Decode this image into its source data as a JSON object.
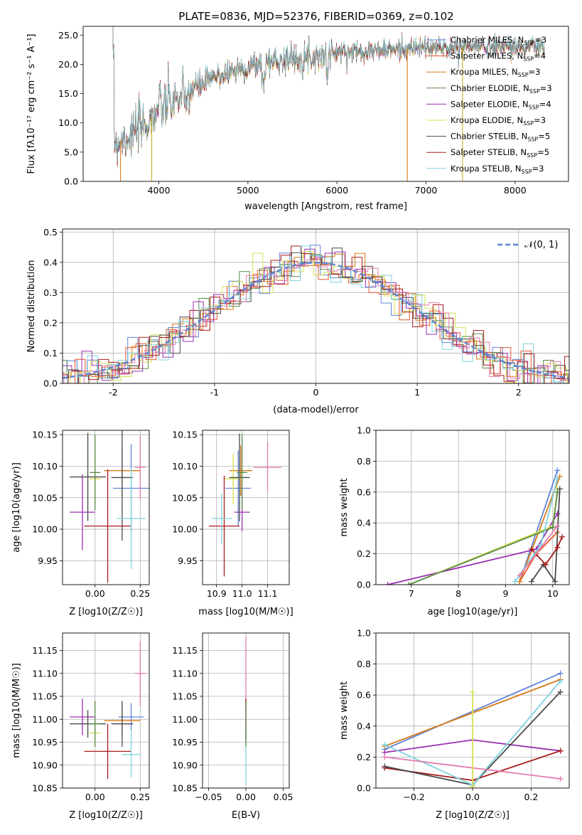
{
  "figure_title": "PLATE=0836, MJD=52376, FIBERID=0369, z=0.102",
  "colors": {
    "Chabrier MILES": "#5f84d6",
    "Salpeter MILES": "#e3572b",
    "Kroupa MILES": "#d97a16",
    "Chabrier ELODIE": "#5a8a4a",
    "Salpeter ELODIE": "#9a2fb0",
    "Kroupa ELODIE": "#d6e052",
    "Chabrier STELIB": "#4a4a4a",
    "Salpeter STELIB": "#a81a1a",
    "Kroupa STELIB": "#7fd3dc",
    "pink": "#e27bb0",
    "normal_curve": "#5f84d6"
  },
  "chart_data": [
    {
      "type": "line",
      "title": "PLATE=0836, MJD=52376, FIBERID=0369, z=0.102",
      "xlabel": "wavelength [Angstrom, rest frame]",
      "ylabel": "Flux [fλ10⁻¹⁷ erg cm⁻² s⁻¹ A⁻¹]",
      "xlim": [
        3150,
        8600
      ],
      "ylim": [
        0,
        26.5
      ],
      "xticks": [
        4000,
        5000,
        6000,
        7000,
        8000
      ],
      "yticks": [
        0,
        5,
        10,
        15,
        20,
        25
      ],
      "legend_position": "upper-right",
      "series": [
        {
          "name": "Chabrier MILES, N_SSP=3",
          "key": "Chabrier MILES"
        },
        {
          "name": "Salpeter MILES, N_SSP=4",
          "key": "Salpeter MILES"
        },
        {
          "name": "Kroupa MILES, N_SSP=3",
          "key": "Kroupa MILES"
        },
        {
          "name": "Chabrier ELODIE, N_SSP=3",
          "key": "Chabrier ELODIE"
        },
        {
          "name": "Salpeter ELODIE, N_SSP=4",
          "key": "Salpeter ELODIE"
        },
        {
          "name": "Kroupa ELODIE, N_SSP=3",
          "key": "Kroupa ELODIE"
        },
        {
          "name": "Chabrier STELIB, N_SSP=5",
          "key": "Chabrier STELIB"
        },
        {
          "name": "Salpeter STELIB, N_SSP=5",
          "key": "Salpeter STELIB"
        },
        {
          "name": "Kroupa STELIB, N_SSP=3",
          "key": "Kroupa STELIB"
        }
      ],
      "continuum": [
        [
          3500,
          6.5
        ],
        [
          3700,
          8
        ],
        [
          3900,
          10.5
        ],
        [
          4000,
          12.5
        ],
        [
          4200,
          14
        ],
        [
          4400,
          16
        ],
        [
          4600,
          17.5
        ],
        [
          4800,
          18.8
        ],
        [
          5000,
          19.5
        ],
        [
          5200,
          20.5
        ],
        [
          5500,
          21
        ],
        [
          5800,
          21.5
        ],
        [
          6000,
          22
        ],
        [
          6300,
          22.3
        ],
        [
          6600,
          22.5
        ],
        [
          6900,
          22.8
        ],
        [
          7200,
          22.8
        ],
        [
          7500,
          23
        ],
        [
          7800,
          23.2
        ],
        [
          8100,
          23
        ],
        [
          8300,
          23
        ]
      ],
      "dropouts": [
        [
          3920,
          0
        ],
        [
          6790,
          0
        ],
        [
          7410,
          0
        ],
        [
          3570,
          0
        ]
      ]
    },
    {
      "type": "histogram",
      "xlabel": "(data-model)/error",
      "ylabel": "Normed distribution",
      "xlim": [
        -2.5,
        2.5
      ],
      "ylim": [
        0,
        0.51
      ],
      "xticks": [
        -2,
        -1,
        0,
        1,
        2
      ],
      "yticks": [
        0.0,
        0.1,
        0.2,
        0.3,
        0.4,
        0.5
      ],
      "legend": "𝒩(0, 1)",
      "bin_width": 0.1,
      "reference_curve": "normal(0,1)"
    },
    {
      "type": "scatter",
      "xlabel": "Z [log10(Z/Z☉)]",
      "ylabel": "age [log10(age/yr)]",
      "xlim": [
        -0.18,
        0.3
      ],
      "ylim": [
        9.912,
        10.157
      ],
      "xticks": [
        0.0,
        0.25
      ],
      "xticklabels": [
        "0.00",
        "0.25"
      ],
      "yticks": [
        9.95,
        10.0,
        10.05,
        10.1,
        10.15
      ],
      "yticklabels": [
        "9.95",
        "10.00",
        "10.05",
        "10.10",
        "10.15"
      ],
      "points": [
        {
          "key": "Chabrier MILES",
          "x": 0.2,
          "xerr": 0.1,
          "y": 10.065,
          "yerr": 0.07
        },
        {
          "key": "Kroupa MILES",
          "x": 0.15,
          "xerr": 0.1,
          "y": 10.093,
          "yerr": 0.04
        },
        {
          "key": "Salpeter ELODIE",
          "x": -0.07,
          "xerr": 0.07,
          "y": 10.027,
          "yerr": 0.06
        },
        {
          "key": "Kroupa ELODIE",
          "x": 0.0,
          "xerr": 0.03,
          "y": 10.08,
          "yerr": 0.04
        },
        {
          "key": "Chabrier STELIB",
          "x": -0.04,
          "xerr": 0.1,
          "y": 10.083,
          "yerr": 0.07
        },
        {
          "key": "Chabrier STELIB",
          "x": 0.15,
          "xerr": 0.06,
          "y": 10.082,
          "yerr": 0.1
        },
        {
          "key": "Salpeter STELIB",
          "x": 0.07,
          "xerr": 0.13,
          "y": 10.005,
          "yerr": 0.09
        },
        {
          "key": "Kroupa STELIB",
          "x": 0.2,
          "xerr": 0.08,
          "y": 10.017,
          "yerr": 0.08
        },
        {
          "key": "pink",
          "x": 0.25,
          "xerr": 0.03,
          "y": 10.098,
          "yerr": 0.05
        },
        {
          "key": "Chabrier ELODIE",
          "x": 0.0,
          "xerr": 0.03,
          "y": 10.09,
          "yerr": 0.06
        }
      ]
    },
    {
      "type": "scatter",
      "xlabel": "mass [log10(M/M☉)]",
      "ylabel": "",
      "xlim": [
        10.845,
        11.185
      ],
      "ylim": [
        9.912,
        10.157
      ],
      "xticks": [
        10.9,
        11.0,
        11.1
      ],
      "xticklabels": [
        "10.9",
        "11.0",
        "11.1"
      ],
      "yticks": [
        9.95,
        10.0,
        10.05,
        10.1,
        10.15
      ],
      "yticklabels": [
        "9.95",
        "10.00",
        "10.05",
        "10.10",
        "10.15"
      ],
      "points": [
        {
          "key": "Chabrier MILES",
          "x": 10.985,
          "xerr": 0.05,
          "y": 10.065,
          "yerr": 0.06
        },
        {
          "key": "Kroupa MILES",
          "x": 10.995,
          "xerr": 0.045,
          "y": 10.093,
          "yerr": 0.04
        },
        {
          "key": "Salpeter ELODIE",
          "x": 11.0,
          "xerr": 0.03,
          "y": 10.027,
          "yerr": 0.03
        },
        {
          "key": "Kroupa ELODIE",
          "x": 10.965,
          "xerr": 0.035,
          "y": 10.08,
          "yerr": 0.04
        },
        {
          "key": "Chabrier STELIB",
          "x": 10.99,
          "xerr": 0.04,
          "y": 10.082,
          "yerr": 0.07
        },
        {
          "key": "Salpeter STELIB",
          "x": 10.93,
          "xerr": 0.06,
          "y": 10.005,
          "yerr": 0.08
        },
        {
          "key": "Kroupa STELIB",
          "x": 10.92,
          "xerr": 0.04,
          "y": 10.017,
          "yerr": 0.04
        },
        {
          "key": "pink",
          "x": 11.1,
          "xerr": 0.055,
          "y": 10.098,
          "yerr": 0.04
        },
        {
          "key": "Chabrier ELODIE",
          "x": 11.0,
          "xerr": 0.02,
          "y": 10.09,
          "yerr": 0.06
        }
      ]
    },
    {
      "type": "line",
      "xlabel": "age [log10(age/yr)]",
      "ylabel": "mass weight",
      "xlim": [
        6.25,
        10.35
      ],
      "ylim": [
        0,
        1.0
      ],
      "xticks": [
        7,
        8,
        9,
        10
      ],
      "yticks": [
        0.0,
        0.2,
        0.4,
        0.6,
        0.8,
        1.0
      ],
      "series": [
        {
          "key": "Chabrier MILES",
          "x": [
            9.3,
            10.1
          ],
          "y": [
            0.02,
            0.74
          ]
        },
        {
          "key": "Salpeter MILES",
          "x": [
            9.3,
            9.65,
            10.1
          ],
          "y": [
            0.02,
            0.2,
            0.34
          ]
        },
        {
          "key": "Kroupa MILES",
          "x": [
            9.3,
            10.15
          ],
          "y": [
            0.02,
            0.7
          ]
        },
        {
          "key": "Salpeter ELODIE",
          "x": [
            6.5,
            9.65,
            10.1
          ],
          "y": [
            0.0,
            0.23,
            0.46
          ]
        },
        {
          "key": "Kroupa ELODIE",
          "x": [
            6.95,
            10.0,
            10.1
          ],
          "y": [
            0.0,
            0.38,
            0.62
          ]
        },
        {
          "key": "Chabrier ELODIE",
          "x": [
            6.95,
            10.0,
            10.1
          ],
          "y": [
            0.0,
            0.37,
            0.6
          ]
        },
        {
          "key": "Chabrier STELIB",
          "x": [
            9.55,
            9.8,
            10.05,
            10.15
          ],
          "y": [
            0.02,
            0.13,
            0.02,
            0.62
          ]
        },
        {
          "key": "Salpeter STELIB",
          "x": [
            9.55,
            9.85,
            10.1,
            10.2
          ],
          "y": [
            0.23,
            0.13,
            0.24,
            0.31
          ]
        },
        {
          "key": "Kroupa STELIB",
          "x": [
            9.2,
            9.75,
            10.1
          ],
          "y": [
            0.02,
            0.26,
            0.69
          ]
        },
        {
          "key": "pink",
          "x": [
            9.3,
            10.1
          ],
          "y": [
            0.06,
            0.38
          ]
        }
      ]
    },
    {
      "type": "scatter",
      "xlabel": "Z [log10(Z/Z☉)]",
      "ylabel": "mass [log10(M/M☉)]",
      "xlim": [
        -0.18,
        0.3
      ],
      "ylim": [
        10.85,
        11.188
      ],
      "xticks": [
        0.0,
        0.25
      ],
      "xticklabels": [
        "0.00",
        "0.25"
      ],
      "yticks": [
        10.85,
        10.9,
        10.95,
        11.0,
        11.05,
        11.1,
        11.15
      ],
      "yticklabels": [
        "10.85",
        "10.90",
        "10.95",
        "11.00",
        "11.05",
        "11.10",
        "11.15"
      ],
      "points": [
        {
          "key": "Chabrier MILES",
          "x": 0.2,
          "xerr": 0.07,
          "y": 11.005,
          "yerr": 0.03
        },
        {
          "key": "Kroupa MILES",
          "x": 0.15,
          "xerr": 0.1,
          "y": 10.997,
          "yerr": 0.03
        },
        {
          "key": "Salpeter ELODIE",
          "x": -0.07,
          "xerr": 0.07,
          "y": 11.005,
          "yerr": 0.04
        },
        {
          "key": "Kroupa ELODIE",
          "x": 0.0,
          "xerr": 0.03,
          "y": 10.97,
          "yerr": 0.03
        },
        {
          "key": "Chabrier STELIB",
          "x": -0.04,
          "xerr": 0.1,
          "y": 10.99,
          "yerr": 0.03
        },
        {
          "key": "Chabrier STELIB",
          "x": 0.15,
          "xerr": 0.06,
          "y": 10.99,
          "yerr": 0.05
        },
        {
          "key": "Salpeter STELIB",
          "x": 0.07,
          "xerr": 0.13,
          "y": 10.93,
          "yerr": 0.06
        },
        {
          "key": "Kroupa STELIB",
          "x": 0.2,
          "xerr": 0.05,
          "y": 10.923,
          "yerr": 0.05
        },
        {
          "key": "pink",
          "x": 0.25,
          "xerr": 0.03,
          "y": 11.1,
          "yerr": 0.07
        },
        {
          "key": "Chabrier ELODIE",
          "x": 0.0,
          "xerr": 0.03,
          "y": 10.99,
          "yerr": 0.05
        }
      ]
    },
    {
      "type": "scatter",
      "xlabel": "E(B-V)",
      "ylabel": "",
      "xlim": [
        -0.058,
        0.058
      ],
      "ylim": [
        10.85,
        11.188
      ],
      "xticks": [
        -0.05,
        0.0,
        0.05
      ],
      "xticklabels": [
        "−0.05",
        "0.00",
        "0.05"
      ],
      "yticks": [
        10.85,
        10.9,
        10.95,
        11.0,
        11.05,
        11.1,
        11.15
      ],
      "yticklabels": [
        "10.85",
        "10.90",
        "10.95",
        "11.00",
        "11.05",
        "11.10",
        "11.15"
      ],
      "points": [
        {
          "key": "pink",
          "x": 0.0,
          "xerr": 0.0,
          "y": 11.1,
          "yerr": 0.08
        },
        {
          "key": "Kroupa STELIB",
          "x": 0.0,
          "xerr": 0.0,
          "y": 10.92,
          "yerr": 0.06
        },
        {
          "key": "Salpeter STELIB",
          "x": 0.0,
          "xerr": 0.0,
          "y": 11.0,
          "yerr": 0.045
        },
        {
          "key": "Chabrier ELODIE",
          "x": 0.0,
          "xerr": 0.0,
          "y": 10.99,
          "yerr": 0.05
        }
      ]
    },
    {
      "type": "line",
      "xlabel": "Z [log10(Z/Z☉)]",
      "ylabel": "mass weight",
      "xlim": [
        -0.33,
        0.33
      ],
      "ylim": [
        0,
        1.0
      ],
      "xticks": [
        -0.2,
        0.0,
        0.2
      ],
      "xticklabels": [
        "−0.2",
        "0.0",
        "0.2"
      ],
      "yticks": [
        0.0,
        0.2,
        0.4,
        0.6,
        0.8,
        1.0
      ],
      "series": [
        {
          "key": "Chabrier MILES",
          "x": [
            -0.3,
            0.3
          ],
          "y": [
            0.25,
            0.74
          ]
        },
        {
          "key": "Kroupa MILES",
          "x": [
            -0.3,
            0.3
          ],
          "y": [
            0.27,
            0.7
          ]
        },
        {
          "key": "Salpeter ELODIE",
          "x": [
            -0.3,
            0.0,
            0.3
          ],
          "y": [
            0.23,
            0.31,
            0.24
          ]
        },
        {
          "key": "Salpeter STELIB",
          "x": [
            -0.3,
            0.0,
            0.3
          ],
          "y": [
            0.13,
            0.05,
            0.24
          ]
        },
        {
          "key": "Chabrier STELIB",
          "x": [
            -0.3,
            0.0,
            0.3
          ],
          "y": [
            0.14,
            0.02,
            0.62
          ]
        },
        {
          "key": "Kroupa STELIB",
          "x": [
            -0.3,
            0.0,
            0.3
          ],
          "y": [
            0.28,
            0.02,
            0.69
          ]
        },
        {
          "key": "pink",
          "x": [
            -0.3,
            0.3
          ],
          "y": [
            0.2,
            0.06
          ]
        },
        {
          "key": "Kroupa ELODIE",
          "x": [
            0.0,
            0.0
          ],
          "y": [
            0.01,
            0.62
          ]
        }
      ]
    }
  ]
}
